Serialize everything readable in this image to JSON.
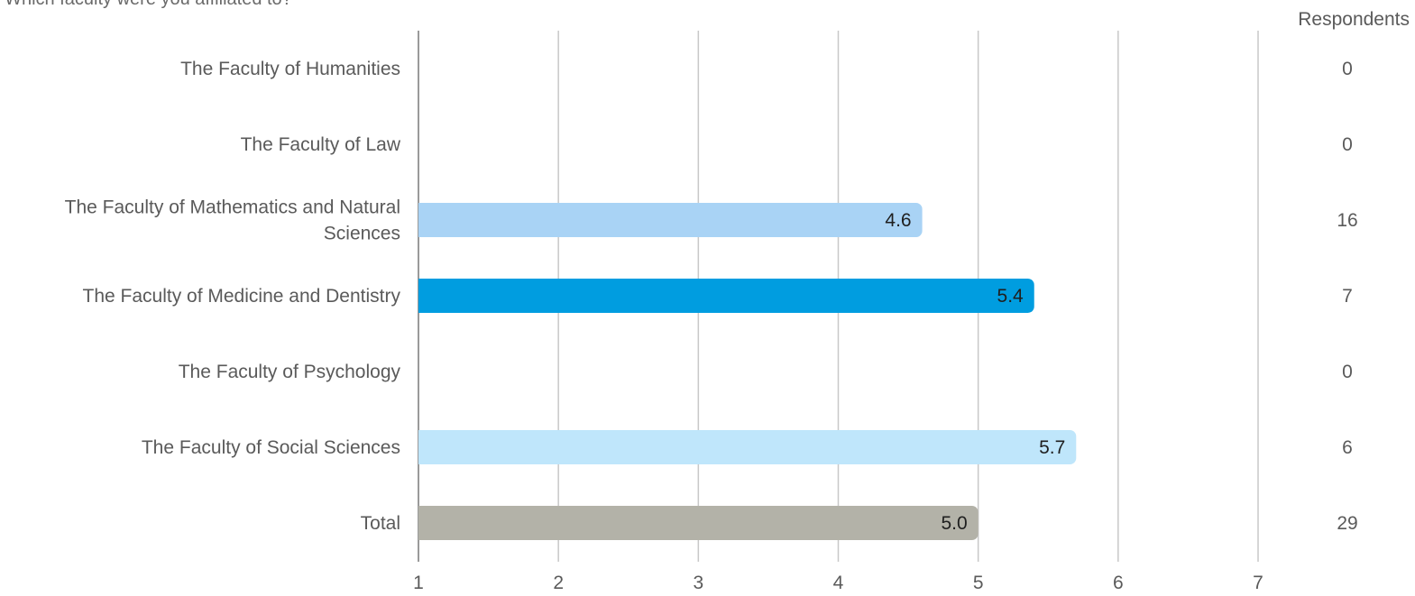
{
  "question": ": Which faculty were you affiliated to?",
  "respondents_header": "Respondents",
  "colors": {
    "grid": "#c8c8c8",
    "axis": "#9a9a9a",
    "label": "#5a5a5a",
    "value_label": "#1f1f1f"
  },
  "chart_data": {
    "type": "bar",
    "orientation": "horizontal",
    "categories": [
      "The Faculty of Humanities",
      "The Faculty of Law",
      "The Faculty of Mathematics and Natural Sciences",
      "The Faculty of Medicine and Dentistry",
      "The Faculty of Psychology",
      "The Faculty of Social Sciences",
      "Total"
    ],
    "category_lines": [
      [
        "The Faculty of Humanities"
      ],
      [
        "The Faculty of Law"
      ],
      [
        "The Faculty of Mathematics and Natural",
        "Sciences"
      ],
      [
        "The Faculty of Medicine and Dentistry"
      ],
      [
        "The Faculty of Psychology"
      ],
      [
        "The Faculty of Social Sciences"
      ],
      [
        "Total"
      ]
    ],
    "values": [
      null,
      null,
      4.6,
      5.4,
      null,
      5.7,
      5.0
    ],
    "value_labels": [
      "",
      "",
      "4.6",
      "5.4",
      "",
      "5.7",
      "5.0"
    ],
    "respondents": [
      "0",
      "0",
      "16",
      "7",
      "0",
      "6",
      "29"
    ],
    "bar_colors": [
      "#a9d3f5",
      "#a9d3f5",
      "#a9d3f5",
      "#009de0",
      "#bfe6fb",
      "#bfe6fb",
      "#b3b2a8"
    ],
    "xlim": [
      1,
      7
    ],
    "xticks": [
      "1",
      "2",
      "3",
      "4",
      "5",
      "6",
      "7"
    ],
    "grid": true,
    "legend": "none",
    "xlabel": "",
    "ylabel": ""
  }
}
